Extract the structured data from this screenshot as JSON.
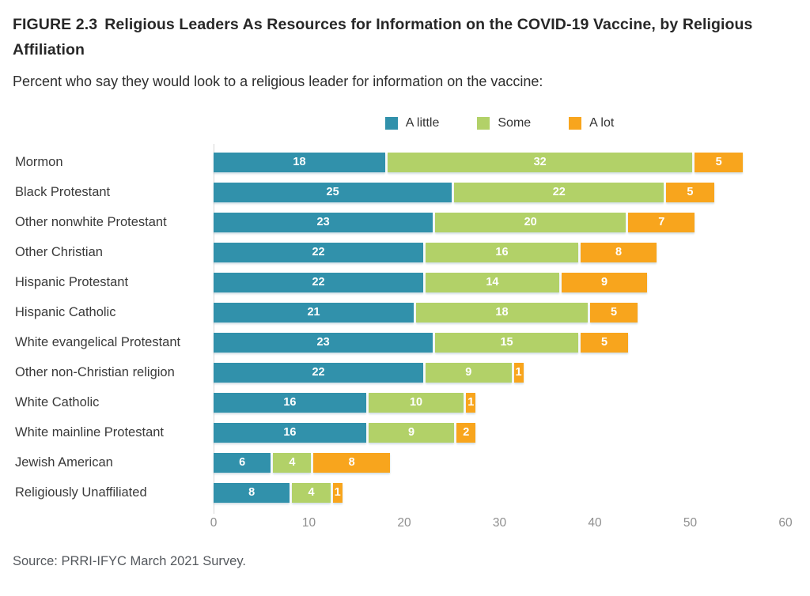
{
  "header": {
    "figure_label": "FIGURE 2.3",
    "title": "Religious Leaders As Resources for Information on the COVID-19 Vaccine, by Religious Affiliation",
    "subtitle": "Percent who say they would look to a religious leader for information on the vaccine:"
  },
  "legend": {
    "items": [
      {
        "label": "A little",
        "color": "#3191ab"
      },
      {
        "label": "Some",
        "color": "#b2d168"
      },
      {
        "label": "A lot",
        "color": "#f8a51d"
      }
    ]
  },
  "chart_data": {
    "type": "bar",
    "orientation": "horizontal",
    "stacked": true,
    "title": "FIGURE 2.3 Religious Leaders As Resources for Information on the COVID-19 Vaccine, by Religious Affiliation",
    "subtitle": "Percent who say they would look to a religious leader for information on the vaccine:",
    "categories": [
      "Mormon",
      "Black Protestant",
      "Other nonwhite Protestant",
      "Other Christian",
      "Hispanic Protestant",
      "Hispanic Catholic",
      "White evangelical Protestant",
      "Other non-Christian religion",
      "White Catholic",
      "White mainline Protestant",
      "Jewish American",
      "Religiously Unaffiliated"
    ],
    "series": [
      {
        "name": "A little",
        "color": "#3191ab",
        "values": [
          18,
          25,
          23,
          22,
          22,
          21,
          23,
          22,
          16,
          16,
          6,
          8
        ]
      },
      {
        "name": "Some",
        "color": "#b2d168",
        "values": [
          32,
          22,
          20,
          16,
          14,
          18,
          15,
          9,
          10,
          9,
          4,
          4
        ]
      },
      {
        "name": "A lot",
        "color": "#f8a51d",
        "values": [
          5,
          5,
          7,
          8,
          9,
          5,
          5,
          1,
          1,
          2,
          8,
          1
        ]
      }
    ],
    "xlabel": "",
    "ylabel": "",
    "xlim": [
      0,
      60
    ],
    "xticks": [
      0,
      10,
      20,
      30,
      40,
      50,
      60
    ],
    "legend_position": "top-center",
    "grid": "zero-line-only",
    "value_labels": "inside-white-bold"
  },
  "footer": {
    "source": "Source: PRRI-IFYC March 2021 Survey."
  }
}
